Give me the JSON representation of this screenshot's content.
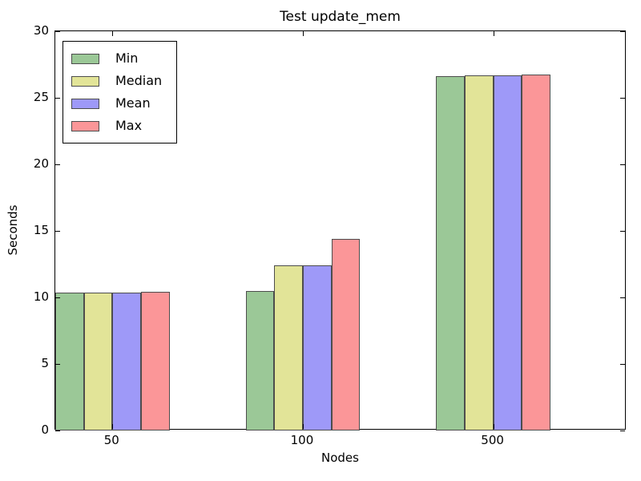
{
  "chart_data": {
    "type": "bar",
    "title": "Test update_mem",
    "xlabel": "Nodes",
    "ylabel": "Seconds",
    "categories": [
      "50",
      "100",
      "500"
    ],
    "series": [
      {
        "name": "Min",
        "color": "#9bc897",
        "values": [
          10.38,
          10.5,
          26.6
        ]
      },
      {
        "name": "Median",
        "color": "#e2e498",
        "values": [
          10.36,
          12.42,
          26.67
        ]
      },
      {
        "name": "Mean",
        "color": "#9e99f8",
        "values": [
          10.38,
          12.4,
          26.67
        ]
      },
      {
        "name": "Max",
        "color": "#fb9698",
        "values": [
          10.45,
          14.42,
          26.75
        ]
      }
    ],
    "ylim": [
      0,
      30
    ],
    "xlim": [
      0,
      3
    ],
    "yticks": [
      0,
      5,
      10,
      15,
      20,
      25,
      30
    ],
    "bar_width": 0.15,
    "group_center_offset": 0.3,
    "bar_edge_color": "#4d4d4d",
    "legend_position": "upper left",
    "grid": false,
    "background": "#ffffff"
  }
}
